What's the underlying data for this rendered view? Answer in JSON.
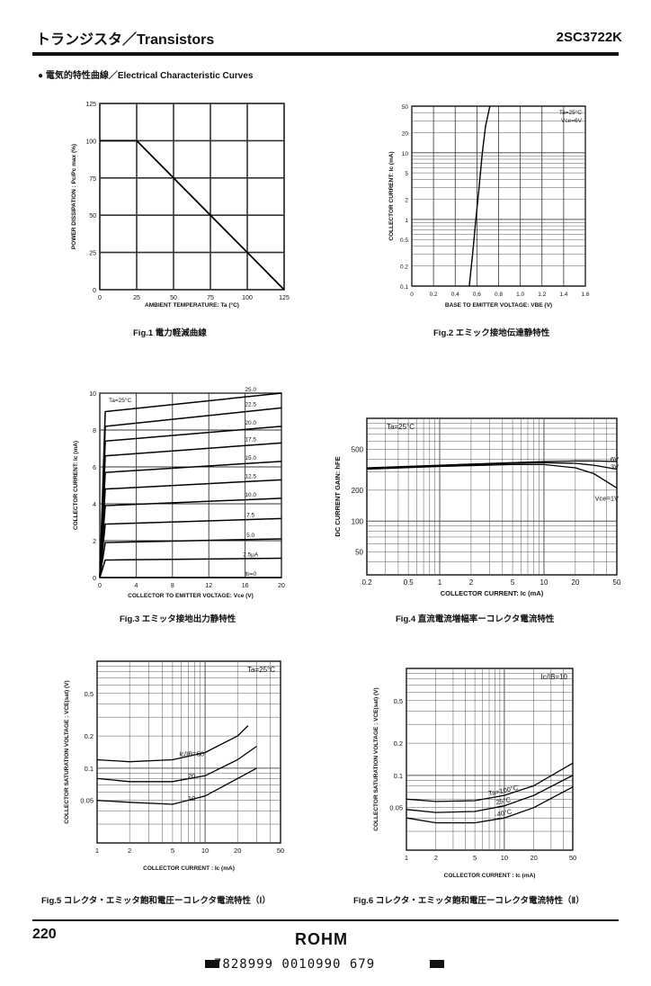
{
  "header": {
    "title": "トランジスタ／Transistors",
    "part_number": "2SC3722K"
  },
  "section_title": "● 電気的特性曲線／Electrical Characteristic Curves",
  "footer": {
    "page_number": "220",
    "brand": "ROHM",
    "barcode_text": "7828999 0010990 679"
  },
  "figures": {
    "fig1": {
      "caption": "Fig.1  電力軽減曲線"
    },
    "fig2": {
      "caption": "Fig.2  エミック接地伝達静特性"
    },
    "fig3": {
      "caption": "Fig.3  エミッタ接地出力静特性"
    },
    "fig4": {
      "caption": "Fig.4  直流電流増幅率ーコレクタ電流特性"
    },
    "fig5": {
      "caption": "Fig.5  コレクタ・エミッタ飽和電圧ーコレクタ電流特性（Ⅰ）"
    },
    "fig6": {
      "caption": "Fig.6  コレクタ・エミッタ飽和電圧ーコレクタ電流特性（Ⅱ）"
    }
  },
  "chart_data": [
    {
      "id": "fig1",
      "type": "line",
      "xlabel": "AMBIENT TEMPERATURE: Ta (°C)",
      "ylabel": "POWER DISSIPATION : Pc/Pc max (%)",
      "xlim": [
        0,
        125
      ],
      "ylim": [
        0,
        125
      ],
      "xticks": [
        "0",
        "25",
        "50",
        "75",
        "100",
        "125"
      ],
      "yticks": [
        "0",
        "25",
        "50",
        "75",
        "100",
        "125"
      ],
      "series": [
        {
          "x": [
            0,
            25,
            125
          ],
          "y": [
            100,
            100,
            0
          ]
        }
      ]
    },
    {
      "id": "fig2",
      "type": "line",
      "xlabel": "BASE TO EMITTER VOLTAGE: VBE (V)",
      "ylabel": "COLLECTOR CURRENT: Ic (mA)",
      "log_y": true,
      "xlim": [
        0,
        1.6
      ],
      "ylim": [
        0.1,
        50
      ],
      "xticks": [
        "0",
        "0.2",
        "0.4",
        "0.6",
        "0.8",
        "1.0",
        "1.2",
        "1.4",
        "1.6"
      ],
      "yticks": [
        "0.1",
        "0.2",
        "0.5",
        "1",
        "2",
        "5",
        "10",
        "20",
        "50"
      ],
      "legend": [
        "Ta=25°C",
        "Vce=6V"
      ],
      "series": [
        {
          "x": [
            0.53,
            0.56,
            0.59,
            0.62,
            0.65,
            0.68,
            0.72
          ],
          "y": [
            0.1,
            0.3,
            1,
            3,
            10,
            25,
            50
          ]
        }
      ]
    },
    {
      "id": "fig3",
      "type": "line",
      "xlabel": "COLLECTOR TO EMITTER VOLTAGE: Vce (V)",
      "ylabel": "COLLECTOR CURRENT: Ic (mA)",
      "xlim": [
        0,
        20
      ],
      "ylim": [
        0,
        10
      ],
      "xticks": [
        "0",
        "4",
        "8",
        "12",
        "16",
        "20"
      ],
      "yticks": [
        "0",
        "2",
        "4",
        "6",
        "8",
        "10"
      ],
      "legend": [
        "Ta=25°C"
      ],
      "curve_labels": [
        "25.0",
        "22.5",
        "20.0",
        "17.5",
        "15.0",
        "12.5",
        "10.0",
        "7.5",
        "5.0",
        "2.5μA",
        "Ib=0"
      ],
      "series": [
        {
          "name": "25.0",
          "y0": 9.0,
          "y20": 10.0
        },
        {
          "name": "22.5",
          "y0": 8.2,
          "y20": 9.2
        },
        {
          "name": "20.0",
          "y0": 7.4,
          "y20": 8.2
        },
        {
          "name": "17.5",
          "y0": 6.6,
          "y20": 7.3
        },
        {
          "name": "15.0",
          "y0": 5.7,
          "y20": 6.3
        },
        {
          "name": "12.5",
          "y0": 4.8,
          "y20": 5.3
        },
        {
          "name": "10.0",
          "y0": 3.9,
          "y20": 4.3
        },
        {
          "name": "7.5",
          "y0": 2.9,
          "y20": 3.2
        },
        {
          "name": "5.0",
          "y0": 1.9,
          "y20": 2.1
        },
        {
          "name": "2.5μA",
          "y0": 0.95,
          "y20": 1.05
        },
        {
          "name": "Ib=0",
          "y0": 0,
          "y20": 0
        }
      ]
    },
    {
      "id": "fig4",
      "type": "line",
      "xlabel": "COLLECTOR CURRENT: Ic (mA)",
      "ylabel": "DC CURRENT GAIN: hFE",
      "log_x": true,
      "log_y": true,
      "xlim": [
        0.2,
        50
      ],
      "ylim": [
        30,
        1000
      ],
      "xticks": [
        "0.2",
        "0.5",
        "1",
        "2",
        "5",
        "10",
        "20",
        "50"
      ],
      "yticks": [
        "50",
        "100",
        "200",
        "500"
      ],
      "legend": [
        "Ta=25°C"
      ],
      "curve_labels": [
        "6V",
        "3V",
        "Vce=1V"
      ],
      "series": [
        {
          "name": "6V",
          "x": [
            0.2,
            1,
            5,
            10,
            20,
            30,
            50
          ],
          "y": [
            330,
            350,
            370,
            380,
            385,
            385,
            380
          ]
        },
        {
          "name": "3V",
          "x": [
            0.2,
            1,
            5,
            10,
            20,
            30,
            50
          ],
          "y": [
            325,
            345,
            365,
            370,
            365,
            350,
            320
          ]
        },
        {
          "name": "Vce=1V",
          "x": [
            0.2,
            1,
            5,
            10,
            20,
            30,
            50
          ],
          "y": [
            320,
            340,
            355,
            355,
            330,
            290,
            210
          ]
        }
      ]
    },
    {
      "id": "fig5",
      "type": "line",
      "xlabel": "COLLECTOR CURRENT : Ic (mA)",
      "ylabel": "COLLECTOR SATURATION VOLTAGE : VCE(sat) (V)",
      "log_x": true,
      "log_y": true,
      "xlim": [
        1,
        50
      ],
      "ylim": [
        0.02,
        1
      ],
      "xticks": [
        "1",
        "2",
        "5",
        "10",
        "20",
        "50"
      ],
      "yticks": [
        "0.05",
        "0.1",
        "0.2",
        "0.5"
      ],
      "legend": [
        "Ta=25°C"
      ],
      "curve_labels": [
        "Ic/IB=50",
        "20",
        "10"
      ],
      "series": [
        {
          "name": "Ic/IB=50",
          "x": [
            1,
            2,
            5,
            10,
            20,
            25
          ],
          "y": [
            0.12,
            0.115,
            0.12,
            0.14,
            0.2,
            0.25
          ]
        },
        {
          "name": "20",
          "x": [
            1,
            2,
            5,
            10,
            20,
            30
          ],
          "y": [
            0.08,
            0.075,
            0.075,
            0.085,
            0.12,
            0.16
          ]
        },
        {
          "name": "10",
          "x": [
            1,
            2,
            5,
            10,
            20,
            30
          ],
          "y": [
            0.05,
            0.048,
            0.046,
            0.055,
            0.08,
            0.1
          ]
        }
      ]
    },
    {
      "id": "fig6",
      "type": "line",
      "xlabel": "COLLECTOR CURRENT : Ic (mA)",
      "ylabel": "COLLECTOR SATURATION VOLTAGE : VCE(sat) (V)",
      "log_x": true,
      "log_y": true,
      "xlim": [
        1,
        50
      ],
      "ylim": [
        0.02,
        1
      ],
      "xticks": [
        "1",
        "2",
        "5",
        "10",
        "20",
        "50"
      ],
      "yticks": [
        "0.05",
        "0.1",
        "0.2",
        "0.5"
      ],
      "legend": [
        "Ic/IB=10"
      ],
      "curve_labels": [
        "Ta=100°C",
        "25°C",
        "-40°C"
      ],
      "series": [
        {
          "name": "Ta=100°C",
          "x": [
            1,
            2,
            5,
            10,
            20,
            50
          ],
          "y": [
            0.06,
            0.057,
            0.058,
            0.065,
            0.08,
            0.13
          ]
        },
        {
          "name": "25°C",
          "x": [
            1,
            2,
            5,
            10,
            20,
            50
          ],
          "y": [
            0.048,
            0.045,
            0.046,
            0.052,
            0.065,
            0.1
          ]
        },
        {
          "name": "-40°C",
          "x": [
            1,
            2,
            5,
            10,
            20,
            50
          ],
          "y": [
            0.04,
            0.036,
            0.036,
            0.04,
            0.05,
            0.078
          ]
        }
      ]
    }
  ]
}
